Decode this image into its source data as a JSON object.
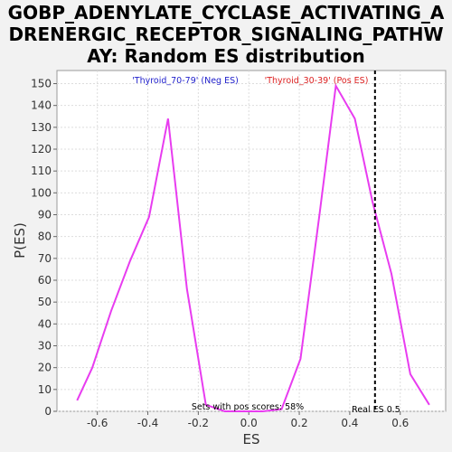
{
  "chart_data": {
    "type": "line",
    "title_lines": [
      "GOBP_ADENYLATE_CYCLASE_ACTIVATING_A",
      "DRENERGIC_RECEPTOR_SIGNALING_PATHW",
      "AY: Random ES distribution"
    ],
    "xlabel": "ES",
    "ylabel": "P(ES)",
    "xlim": [
      -0.76,
      0.78
    ],
    "ylim": [
      0,
      156
    ],
    "xticks": [
      -0.6,
      -0.4,
      -0.2,
      0.0,
      0.2,
      0.4,
      0.6
    ],
    "xtick_labels": [
      "-0.6",
      "-0.4",
      "-0.2",
      "0.0",
      "0.2",
      "0.4",
      "0.6"
    ],
    "yticks": [
      0,
      10,
      20,
      30,
      40,
      50,
      60,
      70,
      80,
      90,
      100,
      110,
      120,
      130,
      140,
      150
    ],
    "ytick_labels": [
      "0",
      "10",
      "20",
      "30",
      "40",
      "50",
      "60",
      "70",
      "80",
      "90",
      "100",
      "110",
      "120",
      "130",
      "140",
      "150"
    ],
    "grid": true,
    "series": [
      {
        "color": "#e83cf0",
        "x": [
          -0.68,
          -0.62,
          -0.545,
          -0.47,
          -0.395,
          -0.32,
          -0.245,
          -0.17,
          -0.095,
          -0.02,
          0.055,
          0.13,
          0.205,
          0.28,
          0.345,
          0.42,
          0.49,
          0.565,
          0.64,
          0.715
        ],
        "y": [
          5,
          20,
          46,
          69,
          89,
          134,
          56,
          3,
          0,
          0,
          0,
          1,
          24,
          90,
          149,
          134,
          96,
          63,
          17,
          3
        ]
      }
    ],
    "real_es_line": {
      "x": 0.5,
      "style": "dashed",
      "color": "#000000"
    },
    "annotations": {
      "neg_label": "'Thyroid_70-79' (Neg ES)",
      "neg_color": "#2222cc",
      "pos_label": "'Thyroid_30-39' (Pos ES)",
      "pos_color": "#dd2222",
      "pos_scores_text": "Sets with pos scores: 58%",
      "real_es_text": "Real ES 0.5"
    }
  }
}
